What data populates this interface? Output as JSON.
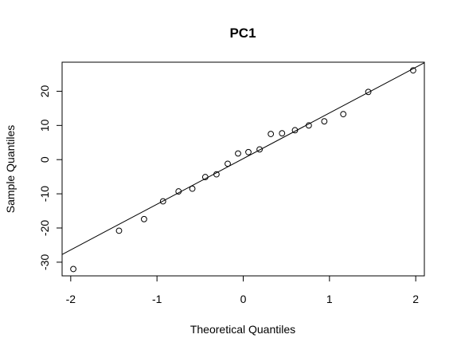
{
  "chart_data": {
    "type": "scatter",
    "title": "PC1",
    "xlabel": "Theoretical Quantiles",
    "ylabel": "Sample Quantiles",
    "xlim": [
      -2.1,
      2.1
    ],
    "ylim": [
      -34,
      28.5
    ],
    "xticks": [
      -2,
      -1,
      0,
      1,
      2
    ],
    "yticks": [
      -30,
      -20,
      -10,
      0,
      10,
      20
    ],
    "grid": false,
    "points": [
      {
        "x": -1.97,
        "y": -32.0
      },
      {
        "x": -1.44,
        "y": -20.8
      },
      {
        "x": -1.15,
        "y": -17.4
      },
      {
        "x": -0.93,
        "y": -12.2
      },
      {
        "x": -0.75,
        "y": -9.3
      },
      {
        "x": -0.59,
        "y": -8.5
      },
      {
        "x": -0.44,
        "y": -5.1
      },
      {
        "x": -0.31,
        "y": -4.3
      },
      {
        "x": -0.18,
        "y": -1.2
      },
      {
        "x": -0.06,
        "y": 1.8
      },
      {
        "x": 0.06,
        "y": 2.2
      },
      {
        "x": 0.19,
        "y": 3.0
      },
      {
        "x": 0.32,
        "y": 7.5
      },
      {
        "x": 0.45,
        "y": 7.7
      },
      {
        "x": 0.6,
        "y": 8.6
      },
      {
        "x": 0.76,
        "y": 10.0
      },
      {
        "x": 0.94,
        "y": 11.2
      },
      {
        "x": 1.16,
        "y": 13.3
      },
      {
        "x": 1.45,
        "y": 19.8
      },
      {
        "x": 1.97,
        "y": 26.1
      }
    ],
    "reference_line": {
      "intercept": 0.3,
      "slope": 13.35
    }
  }
}
